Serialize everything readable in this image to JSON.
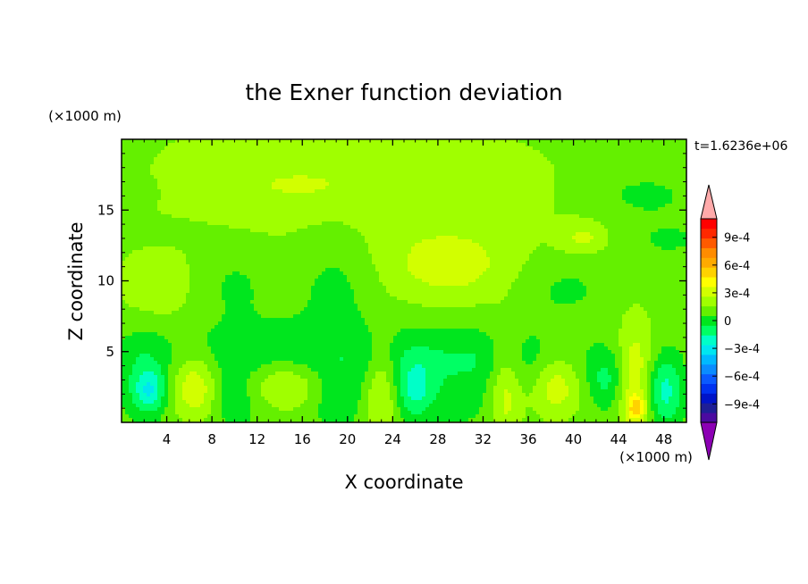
{
  "chart_data": {
    "type": "heatmap",
    "title": "the Exner function deviation",
    "xlabel": "X coordinate",
    "ylabel": "Z coordinate",
    "x_unit": "(×1000 m)",
    "y_unit": "(×1000 m)",
    "time_label": "t=1.6236e+06",
    "xlim": [
      0,
      50
    ],
    "ylim": [
      0,
      20
    ],
    "x_ticks": [
      4,
      8,
      12,
      16,
      20,
      24,
      28,
      32,
      36,
      40,
      44,
      48
    ],
    "y_ticks": [
      5,
      10,
      15
    ],
    "colorbar": {
      "levels": [
        -0.0011,
        -0.001,
        -0.0009,
        -0.0008,
        -0.0007,
        -0.0006,
        -0.0005,
        -0.0004,
        -0.0003,
        -0.0002,
        -0.0001,
        0,
        0.0001,
        0.0002,
        0.0003,
        0.0004,
        0.0005,
        0.0006,
        0.0007,
        0.0008,
        0.0009,
        0.001,
        0.0011
      ],
      "tick_labels": [
        "9e-4",
        "6e-4",
        "3e-4",
        "0",
        "−3e-4",
        "−6e-4",
        "−9e-4"
      ],
      "tick_values": [
        0.0009,
        0.0006,
        0.0003,
        0,
        -0.0003,
        -0.0006,
        -0.0009
      ],
      "colors": [
        "#8c00b4",
        "#4b0aa0",
        "#1e1e96",
        "#0014c8",
        "#0032f0",
        "#0a5aff",
        "#0a8cff",
        "#00b9ff",
        "#00e6f0",
        "#00ffc8",
        "#00ff64",
        "#00e61e",
        "#64f000",
        "#a0ff00",
        "#d2ff00",
        "#ffff00",
        "#ffd200",
        "#ffaa00",
        "#ff8c00",
        "#ff5a00",
        "#ff2800",
        "#ff0000",
        "#ffaaaa"
      ]
    },
    "field": {
      "background": 5e-05,
      "features": [
        {
          "x": 25,
          "z": 16.5,
          "sx": 13,
          "sz": 4.5,
          "v": 9e-05
        },
        {
          "x": 8,
          "z": 17,
          "sx": 5,
          "sz": 3,
          "v": 6e-05
        },
        {
          "x": 16,
          "z": 16.8,
          "sx": 2.6,
          "sz": 0.6,
          "v": 0.0001
        },
        {
          "x": 46,
          "z": 16.2,
          "sx": 3,
          "sz": 1,
          "v": -9e-05
        },
        {
          "x": 1,
          "z": 16.3,
          "sx": 1.2,
          "sz": 0.6,
          "v": -8e-05
        },
        {
          "x": 48,
          "z": 13,
          "sx": 4,
          "sz": 1.5,
          "v": -7e-05
        },
        {
          "x": 3.5,
          "z": 13.4,
          "sx": 3,
          "sz": 0.6,
          "v": -7e-05
        },
        {
          "x": 41,
          "z": 13,
          "sx": 1.5,
          "sz": 0.8,
          "v": 0.00016
        },
        {
          "x": 29,
          "z": 11,
          "sx": 4,
          "sz": 1.8,
          "v": 0.00017
        },
        {
          "x": 3,
          "z": 9.5,
          "sx": 2.5,
          "sz": 2,
          "v": 0.00012
        },
        {
          "x": 19,
          "z": 10,
          "sx": 2.5,
          "sz": 2.5,
          "v": -0.0001
        },
        {
          "x": 10,
          "z": 10,
          "sx": 2.5,
          "sz": 2,
          "v": -8e-05
        },
        {
          "x": 39,
          "z": 9.5,
          "sx": 3,
          "sz": 1.5,
          "v": -8e-05
        },
        {
          "x": 15,
          "z": 4.5,
          "sx": 9,
          "sz": 1.8,
          "v": -0.00014
        },
        {
          "x": 32,
          "z": 4.5,
          "sx": 6,
          "sz": 1.5,
          "v": -0.00013
        },
        {
          "x": 2,
          "z": 3.5,
          "sx": 1.5,
          "sz": 2.5,
          "v": -0.00012
        },
        {
          "x": 6.5,
          "z": 2.6,
          "sx": 1.5,
          "sz": 1.6,
          "v": 0.00027
        },
        {
          "x": 14.5,
          "z": 2.7,
          "sx": 2.5,
          "sz": 1.2,
          "v": 0.00022
        },
        {
          "x": 23,
          "z": 2.5,
          "sx": 1,
          "sz": 2.5,
          "v": 0.0002
        },
        {
          "x": 34,
          "z": 2.5,
          "sx": 1,
          "sz": 2.8,
          "v": 0.0002
        },
        {
          "x": 38.5,
          "z": 2.6,
          "sx": 1.5,
          "sz": 1.6,
          "v": 0.00022
        },
        {
          "x": 45.5,
          "z": 3,
          "sx": 1.2,
          "sz": 3,
          "v": 0.00025
        },
        {
          "x": 45.6,
          "z": 1,
          "sx": 0.6,
          "sz": 0.6,
          "v": 0.00028
        },
        {
          "x": 2.5,
          "z": 2.2,
          "sx": 1,
          "sz": 1,
          "v": -0.00025
        },
        {
          "x": 26,
          "z": 2.2,
          "sx": 1.2,
          "sz": 1.5,
          "v": -0.00024
        },
        {
          "x": 43,
          "z": 3,
          "sx": 1.2,
          "sz": 1.5,
          "v": -0.00018
        },
        {
          "x": 48,
          "z": 2.2,
          "sx": 1.2,
          "sz": 1.8,
          "v": -0.0003
        },
        {
          "x": 10,
          "z": 1.5,
          "sx": 1.5,
          "sz": 1.5,
          "v": -0.00012
        },
        {
          "x": 19,
          "z": 1.5,
          "sx": 1.5,
          "sz": 1.5,
          "v": -0.00012
        },
        {
          "x": 30,
          "z": 1.5,
          "sx": 1.8,
          "sz": 1.2,
          "v": -9e-05
        }
      ]
    }
  }
}
